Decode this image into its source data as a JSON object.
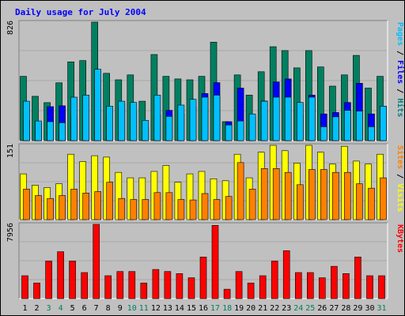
{
  "chart_data": {
    "type": "bar",
    "title": "Daily usage for July 2004",
    "categories": [
      "1",
      "2",
      "3",
      "4",
      "5",
      "6",
      "7",
      "8",
      "9",
      "10",
      "11",
      "12",
      "13",
      "14",
      "15",
      "16",
      "17",
      "18",
      "19",
      "20",
      "21",
      "22",
      "23",
      "24",
      "25",
      "26",
      "27",
      "28",
      "29",
      "30",
      "31"
    ],
    "weekend_days": [
      "3",
      "4",
      "10",
      "11",
      "17",
      "18",
      "24",
      "25",
      "31"
    ],
    "grid": true,
    "panels": [
      {
        "id": "hits",
        "max": 826,
        "max_label": "826",
        "side_labels": [
          {
            "text": "Pages",
            "color": "#00c0ff"
          },
          {
            "text": " / ",
            "color": "#000000"
          },
          {
            "text": "Files",
            "color": "#0000ff"
          },
          {
            "text": " / ",
            "color": "#000000"
          },
          {
            "text": "Hits",
            "color": "#008080"
          }
        ],
        "series": [
          {
            "name": "Hits",
            "color": "#008060",
            "values": [
              448,
              309,
              265,
              403,
              549,
              558,
              826,
              469,
              424,
              458,
              275,
              600,
              448,
              430,
              424,
              448,
              686,
              132,
              458,
              317,
              480,
              655,
              628,
              507,
              628,
              514,
              380,
              458,
              594,
              366,
              448
            ]
          },
          {
            "name": "Files",
            "color": "#0000ff",
            "values": [
              141,
              120,
              237,
              243,
              169,
              149,
              355,
              169,
              258,
              201,
              94,
              180,
              211,
              186,
              237,
              328,
              404,
              132,
              366,
              160,
              276,
              409,
              430,
              180,
              317,
              186,
              196,
              266,
              400,
              186,
              240
            ]
          },
          {
            "name": "Pages",
            "color": "#00c0ff",
            "values": [
              275,
              137,
              132,
              125,
              303,
              317,
              497,
              240,
              275,
              266,
              141,
              317,
              169,
              248,
              288,
              303,
              317,
              109,
              137,
              186,
              275,
              303,
              303,
              266,
              303,
              97,
              166,
              211,
              206,
              97,
              240
            ]
          }
        ]
      },
      {
        "id": "visits",
        "max": 151,
        "max_label": "151",
        "side_labels": [
          {
            "text": "Sites",
            "color": "#ff8000"
          },
          {
            "text": " / ",
            "color": "#000000"
          },
          {
            "text": "Visits",
            "color": "#ffff00"
          }
        ],
        "series": [
          {
            "name": "Visits",
            "color": "#ffff00",
            "values": [
              93,
              70,
              65,
              73,
              133,
              118,
              130,
              127,
              96,
              85,
              85,
              98,
              110,
              76,
              93,
              98,
              83,
              79,
              133,
              85,
              137,
              151,
              140,
              115,
              151,
              137,
              113,
              149,
              119,
              113,
              133
            ]
          },
          {
            "name": "Sites",
            "color": "#ff8000",
            "values": [
              62,
              49,
              43,
              49,
              62,
              54,
              57,
              76,
              43,
              41,
              41,
              55,
              55,
              41,
              40,
              53,
              41,
              47,
              116,
              62,
              104,
              104,
              96,
              71,
              102,
              102,
              96,
              96,
              73,
              64,
              85
            ]
          }
        ]
      },
      {
        "id": "kbytes",
        "max": 7956,
        "max_label": "7956",
        "side_labels": [
          {
            "text": "KBytes",
            "color": "#ff0000"
          }
        ],
        "series": [
          {
            "name": "KBytes",
            "color": "#ff0000",
            "values": [
              2457,
              1676,
              4018,
              5024,
              4018,
              2792,
              7956,
              2457,
              2903,
              2903,
              1676,
              3125,
              2903,
              2680,
              2233,
              4464,
              7844,
              1003,
              2903,
              1676,
              2457,
              4018,
              5136,
              2792,
              2792,
              2233,
              3463,
              2680,
              4464,
              2457,
              2457
            ]
          }
        ]
      }
    ]
  }
}
